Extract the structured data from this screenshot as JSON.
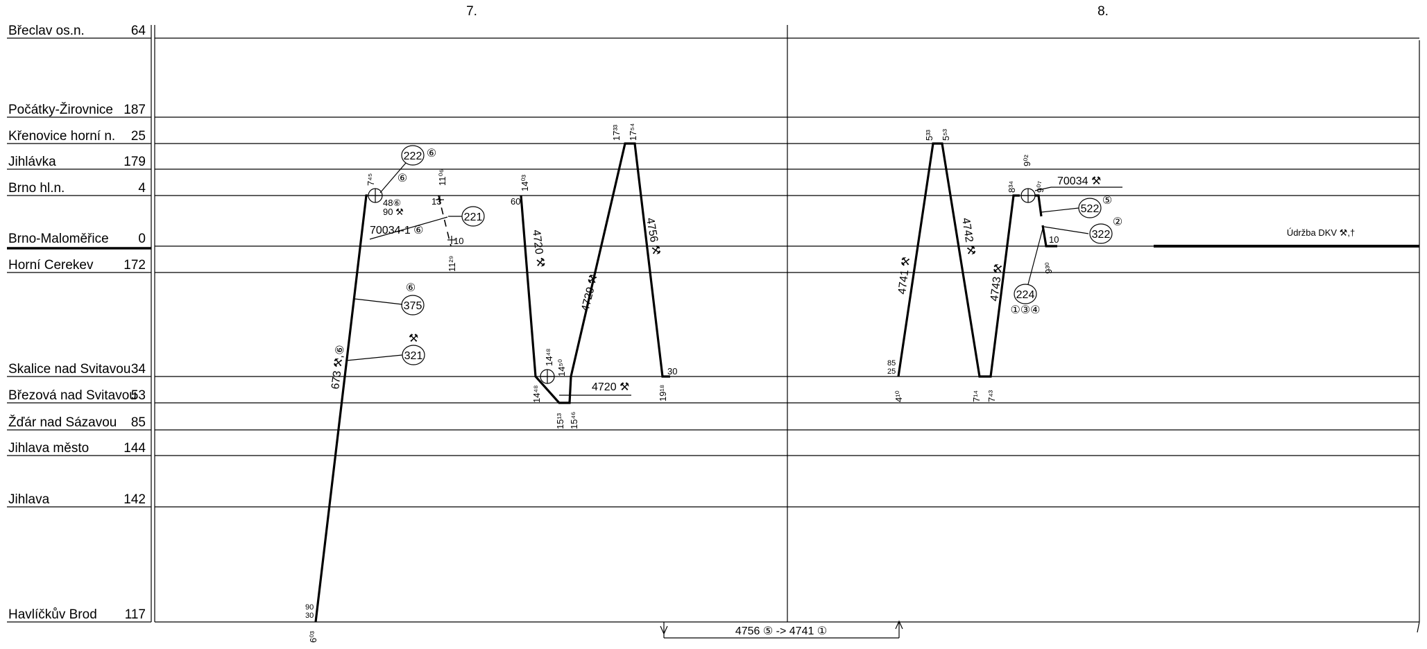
{
  "days": [
    "7.",
    "8."
  ],
  "stations": [
    {
      "name": "Břeclav os.n.",
      "km": "64"
    },
    {
      "name": "Počátky-Žirovnice",
      "km": "187"
    },
    {
      "name": "Křenovice horní n.",
      "km": "25"
    },
    {
      "name": "Jihlávka",
      "km": "179"
    },
    {
      "name": "Brno hl.n.",
      "km": "4"
    },
    {
      "name": "Brno-Maloměřice",
      "km": "0"
    },
    {
      "name": "Horní Cerekev",
      "km": "172"
    },
    {
      "name": "Skalice nad Svitavou",
      "km": "34"
    },
    {
      "name": "Březová nad Svitavou",
      "km": "53"
    },
    {
      "name": "Žďár nad Sázavou",
      "km": "85"
    },
    {
      "name": "Jihlava město",
      "km": "144"
    },
    {
      "name": "Jihlava",
      "km": "142"
    },
    {
      "name": "Havlíčkův Brod",
      "km": "117"
    }
  ],
  "trains": {
    "t673": "673 ⚒,⑥",
    "t4720a": "4720 ⚒",
    "t4720b": "4720 ⚒",
    "t4729": "4729 ⚒",
    "t4756": "4756 ⚒",
    "t4741": "4741 ⚒",
    "t4742": "4742 ⚒",
    "t4743": "4743 ⚒",
    "t70034": "70034 ⚒",
    "t70034_1": "70034-1 ⑥"
  },
  "circles": {
    "c222": "222",
    "c221": "221",
    "c375": "375",
    "c321": "321",
    "c522": "522",
    "c322": "322",
    "c224": "224"
  },
  "marks": {
    "m222": "⑥",
    "m375": "⑥",
    "m321": "⚒",
    "m522": "⑤",
    "m322": "②",
    "m224": "①③④",
    "m745c": "⑥",
    "m48": "48⑥",
    "m90": "90 ⚒",
    "m13": "13",
    "m10a": "10",
    "m60": "60",
    "m30a": "30",
    "m85": "85",
    "m25": "25",
    "m90b": "90",
    "m30b": "30",
    "m10b": "10"
  },
  "maintenance": "Údržba DKV ⚒,†",
  "transfer": "4756 ⑤ -> 4741 ①",
  "times": {
    "t603": "6⁰³",
    "t745": "7⁴⁵",
    "t1106": "11⁰⁶",
    "t1129": "11²⁹",
    "t1403": "14⁰³",
    "t1448a": "14⁴⁸",
    "t1448b": "14⁴⁸",
    "t1450": "14⁵⁰",
    "t1513": "15¹³",
    "t1546": "15⁴⁶",
    "t1733": "17³³",
    "t1754": "17⁵⁴",
    "t1918": "19¹⁸",
    "t410": "4¹⁰",
    "t533": "5³³",
    "t553": "5⁵³",
    "t714": "7¹⁴",
    "t743": "7⁴³",
    "t834": "8³⁴",
    "t902": "9⁰²",
    "t907": "9⁰⁷",
    "t930": "9³⁰"
  }
}
